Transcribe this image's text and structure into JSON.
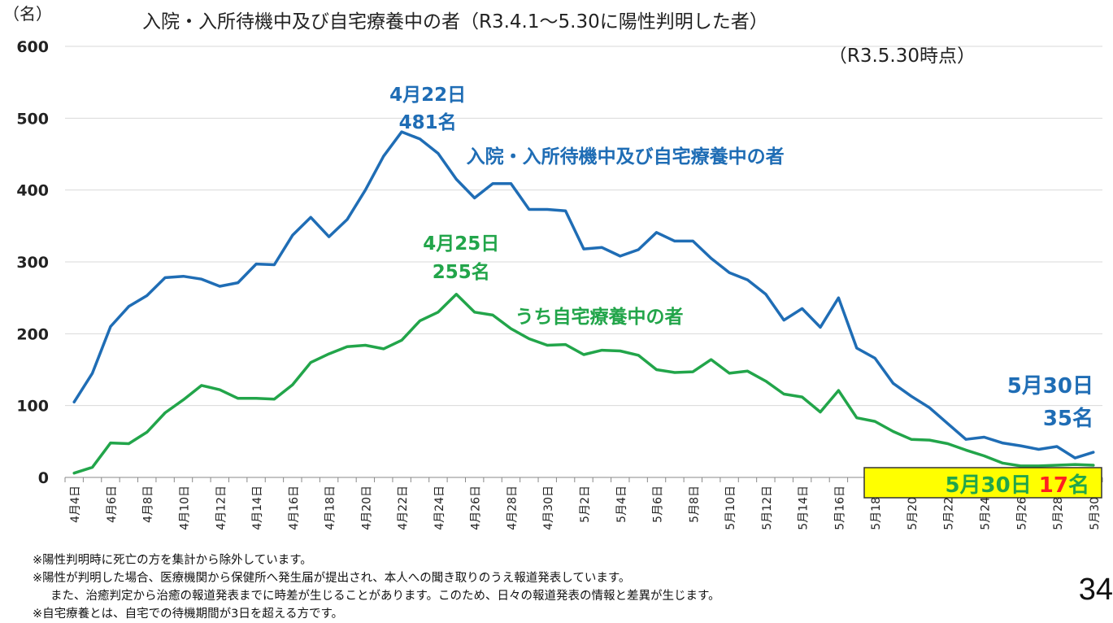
{
  "chart_data": {
    "type": "line",
    "title": "入院・入所待機中及び自宅療養中の者（R3.4.1～5.30に陽性判明した者）",
    "subtitle": "（R3.5.30時点）",
    "ylabel": "（名）",
    "xlabel": "",
    "ylim": [
      0,
      600
    ],
    "yticks": [
      0,
      100,
      200,
      300,
      400,
      500,
      600
    ],
    "grid": true,
    "x": [
      "4月4日",
      "4月5日",
      "4月6日",
      "4月7日",
      "4月8日",
      "4月9日",
      "4月10日",
      "4月11日",
      "4月12日",
      "4月13日",
      "4月14日",
      "4月15日",
      "4月16日",
      "4月17日",
      "4月18日",
      "4月19日",
      "4月20日",
      "4月21日",
      "4月22日",
      "4月23日",
      "4月24日",
      "4月25日",
      "4月26日",
      "4月27日",
      "4月28日",
      "4月29日",
      "4月30日",
      "5月1日",
      "5月2日",
      "5月3日",
      "5月4日",
      "5月5日",
      "5月6日",
      "5月7日",
      "5月8日",
      "5月9日",
      "5月10日",
      "5月11日",
      "5月12日",
      "5月13日",
      "5月14日",
      "5月15日",
      "5月16日",
      "5月17日",
      "5月18日",
      "5月19日",
      "5月20日",
      "5月21日",
      "5月22日",
      "5月23日",
      "5月24日",
      "5月25日",
      "5月26日",
      "5月27日",
      "5月28日",
      "5月29日",
      "5月30日"
    ],
    "xtick_labels": [
      "4月4日",
      "4月6日",
      "4月8日",
      "4月10日",
      "4月12日",
      "4月14日",
      "4月16日",
      "4月18日",
      "4月20日",
      "4月22日",
      "4月24日",
      "4月26日",
      "4月28日",
      "4月30日",
      "5月2日",
      "5月4日",
      "5月6日",
      "5月8日",
      "5月10日",
      "5月12日",
      "5月14日",
      "5月16日",
      "5月18日",
      "5月20日",
      "5月22日",
      "5月24日",
      "5月26日",
      "5月28日",
      "5月30日"
    ],
    "series": [
      {
        "name": "入院・入所待機中及び自宅療養中の者",
        "color": "#1f6db5",
        "values": [
          105,
          145,
          210,
          238,
          253,
          278,
          280,
          276,
          266,
          271,
          297,
          296,
          337,
          362,
          335,
          359,
          400,
          447,
          481,
          471,
          451,
          415,
          389,
          409,
          409,
          373,
          373,
          371,
          318,
          320,
          308,
          317,
          341,
          329,
          329,
          305,
          285,
          275,
          255,
          219,
          235,
          209,
          250,
          180,
          166,
          131,
          113,
          97,
          75,
          53,
          56,
          48,
          44,
          39,
          43,
          27,
          35
        ]
      },
      {
        "name": "うち自宅療養中の者",
        "color": "#22a54a",
        "values": [
          6,
          14,
          48,
          47,
          63,
          90,
          108,
          128,
          122,
          110,
          110,
          109,
          129,
          160,
          172,
          182,
          184,
          179,
          191,
          218,
          230,
          255,
          230,
          226,
          207,
          193,
          184,
          185,
          171,
          177,
          176,
          170,
          150,
          146,
          147,
          164,
          145,
          148,
          134,
          116,
          112,
          91,
          121,
          83,
          78,
          64,
          53,
          52,
          47,
          38,
          30,
          20,
          16,
          16,
          17,
          18,
          17
        ]
      }
    ],
    "annotations": [
      {
        "date": "4月22日",
        "count": "481名",
        "color": "#1f6db5"
      },
      {
        "date": "4月25日",
        "count": "255名",
        "color": "#22a54a"
      },
      {
        "date": "5月30日",
        "count": "35名",
        "color": "#1f6db5"
      }
    ],
    "highlight_box": {
      "date": "5月30日",
      "count": "17",
      "unit": "名",
      "background": "#ffff00",
      "date_color": "#22a54a",
      "count_color": "#ff2020"
    }
  },
  "notes": [
    "※陽性判明時に死亡の方を集計から除外しています。",
    "※陽性が判明した場合、医療機関から保健所へ発生届が提出され、本人への聞き取りのうえ報道発表しています。",
    "また、治癒判定から治癒の報道発表までに時差が生じることがあります。このため、日々の報道発表の情報と差異が生じます。",
    "※自宅療養とは、自宅での待機期間が3日を超える方です。"
  ],
  "page_number": "34"
}
